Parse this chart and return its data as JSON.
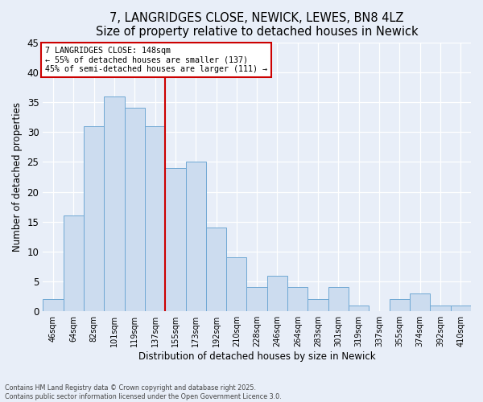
{
  "title1": "7, LANGRIDGES CLOSE, NEWICK, LEWES, BN8 4LZ",
  "title2": "Size of property relative to detached houses in Newick",
  "xlabel": "Distribution of detached houses by size in Newick",
  "ylabel": "Number of detached properties",
  "categories": [
    "46sqm",
    "64sqm",
    "82sqm",
    "101sqm",
    "119sqm",
    "137sqm",
    "155sqm",
    "173sqm",
    "192sqm",
    "210sqm",
    "228sqm",
    "246sqm",
    "264sqm",
    "283sqm",
    "301sqm",
    "319sqm",
    "337sqm",
    "355sqm",
    "374sqm",
    "392sqm",
    "410sqm"
  ],
  "values": [
    2,
    16,
    31,
    36,
    34,
    31,
    24,
    25,
    14,
    9,
    4,
    6,
    4,
    2,
    4,
    1,
    0,
    2,
    3,
    1,
    1
  ],
  "bar_color": "#ccdcef",
  "bar_edge_color": "#6fa8d4",
  "vline_x": 6.0,
  "vline_color": "#cc0000",
  "annotation_text": "7 LANGRIDGES CLOSE: 148sqm\n← 55% of detached houses are smaller (137)\n45% of semi-detached houses are larger (111) →",
  "annotation_box_color": "#ffffff",
  "annotation_box_edge": "#cc0000",
  "ylim": [
    0,
    45
  ],
  "yticks": [
    0,
    5,
    10,
    15,
    20,
    25,
    30,
    35,
    40,
    45
  ],
  "footer1": "Contains HM Land Registry data © Crown copyright and database right 2025.",
  "footer2": "Contains public sector information licensed under the Open Government Licence 3.0.",
  "bg_color": "#e8eef8",
  "title_fontsize": 10.5,
  "ylabel_fontsize": 8.5,
  "xlabel_fontsize": 8.5
}
